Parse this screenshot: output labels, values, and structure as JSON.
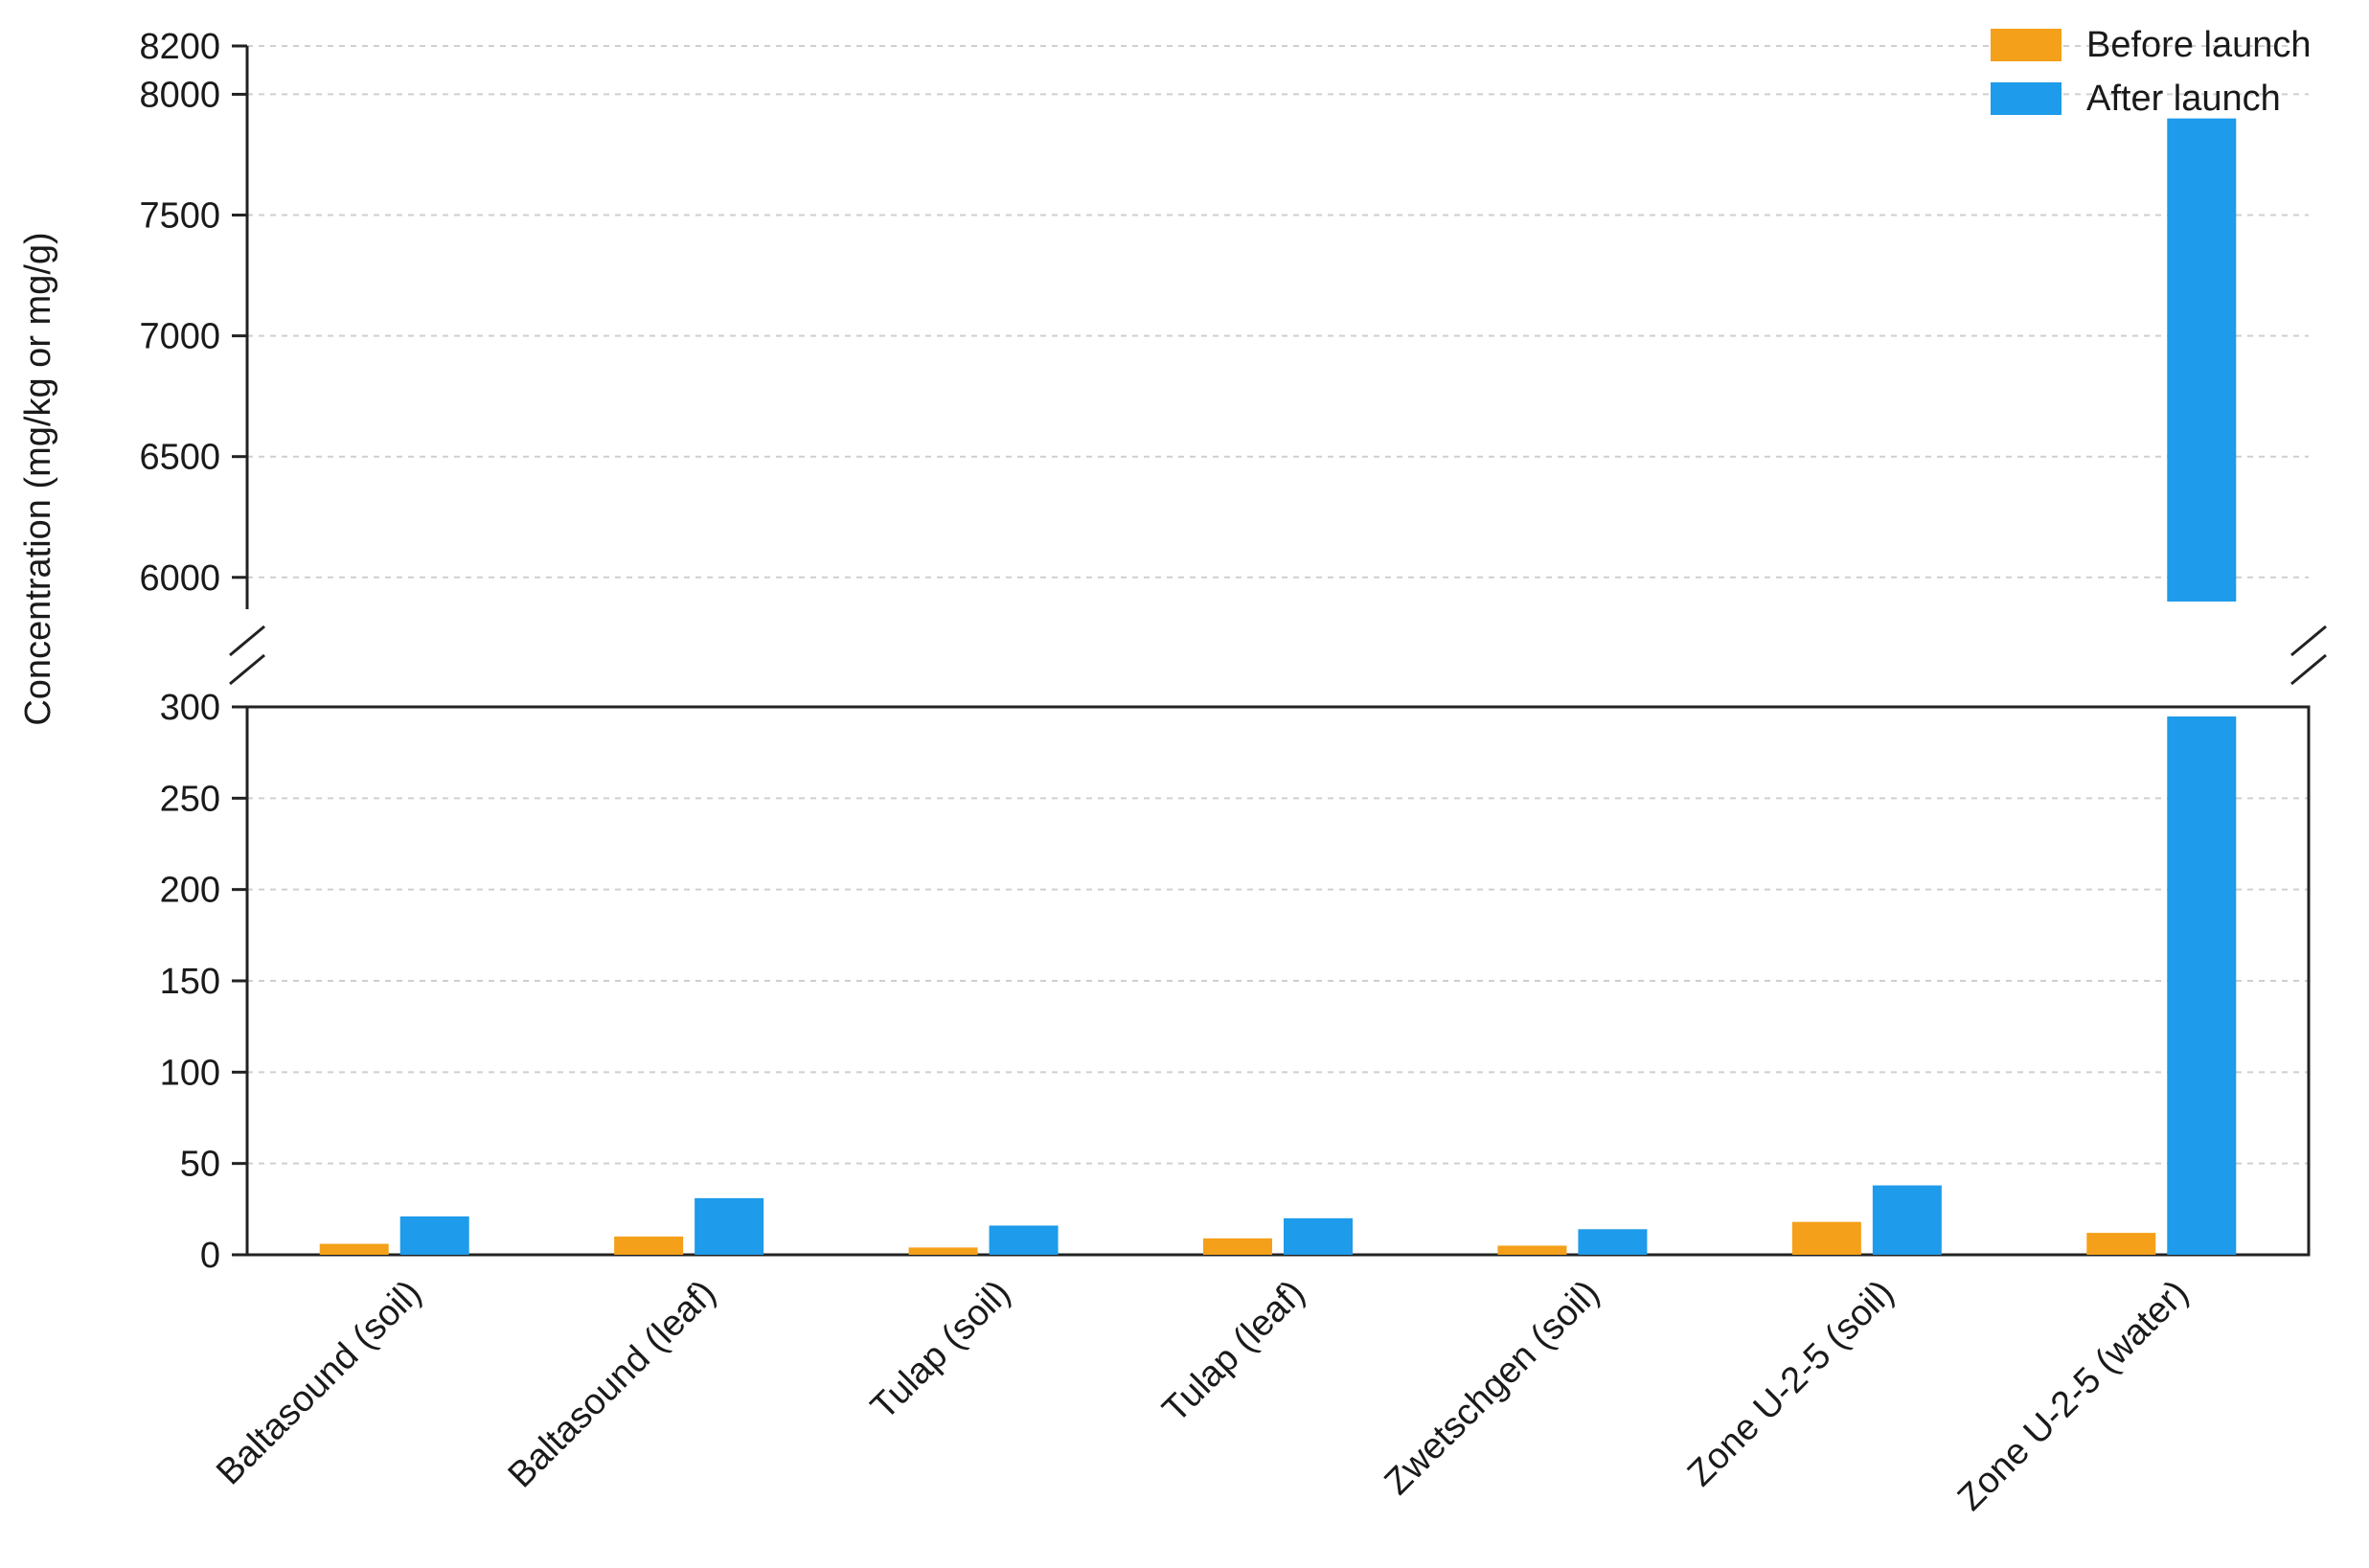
{
  "chart_data": {
    "type": "bar",
    "broken_axis": true,
    "ylabel": "Concentration (mg/kg or mg/g)",
    "xlabel": "",
    "categories": [
      "Baltasound (soil)",
      "Baltasound (leaf)",
      "Tulap (soil)",
      "Tulap (leaf)",
      "Zwetschgen (soil)",
      "Zone U-2-5 (soil)",
      "Zone U-2-5 (water)"
    ],
    "series": [
      {
        "name": "Before launch",
        "color": "#F5A01A",
        "values": [
          6,
          10,
          4,
          9,
          5,
          18,
          12
        ]
      },
      {
        "name": "After launch",
        "color": "#1E9BEA",
        "values": [
          21,
          31,
          16,
          20,
          14,
          38,
          7900
        ]
      }
    ],
    "lower_axis": {
      "ylim": [
        0,
        300
      ],
      "ticks": [
        0,
        50,
        100,
        150,
        200,
        250,
        300
      ]
    },
    "upper_axis": {
      "ylim": [
        5900,
        8200
      ],
      "ticks": [
        6000,
        6500,
        7000,
        7500,
        8000,
        8200
      ]
    },
    "grid": true,
    "legend": "top-right"
  }
}
